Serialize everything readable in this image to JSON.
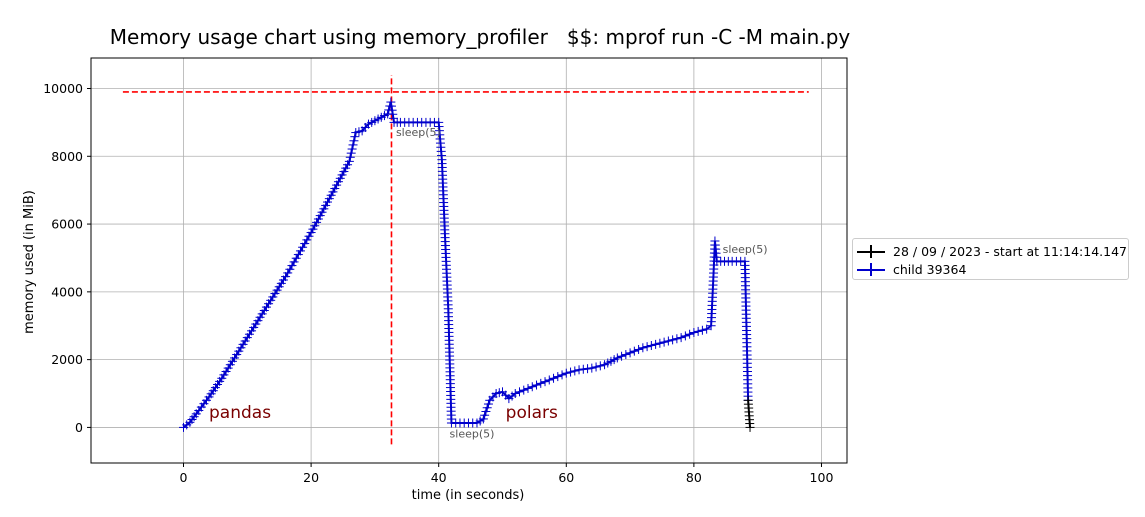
{
  "chart_data": {
    "type": "line",
    "title": "Memory usage chart using memory_profiler   $$: mprof run -C -M main.py",
    "xlabel": "time (in seconds)",
    "ylabel": "memory used (in MiB)",
    "xlim": [
      -14.5,
      104
    ],
    "ylim": [
      -1050,
      10900
    ],
    "x_ticks": [
      0,
      20,
      40,
      60,
      80,
      100
    ],
    "y_ticks": [
      0,
      2000,
      4000,
      6000,
      8000,
      10000
    ],
    "grid": true,
    "legend_position": "outside-right",
    "series": [
      {
        "name": "28 / 09 / 2023 - start at 11:14:14.147",
        "color": "#000000",
        "marker": "+",
        "points": [
          [
            88.5,
            800
          ],
          [
            88.8,
            0
          ]
        ]
      },
      {
        "name": "child 39364",
        "color": "#0000cc",
        "marker": "+",
        "points": [
          [
            0,
            0
          ],
          [
            1,
            150
          ],
          [
            2,
            400
          ],
          [
            4,
            900
          ],
          [
            6,
            1450
          ],
          [
            8,
            2050
          ],
          [
            10,
            2650
          ],
          [
            12,
            3250
          ],
          [
            14,
            3850
          ],
          [
            16,
            4450
          ],
          [
            18,
            5100
          ],
          [
            20,
            5750
          ],
          [
            22,
            6450
          ],
          [
            24,
            7150
          ],
          [
            26,
            7850
          ],
          [
            27,
            8700
          ],
          [
            28,
            8750
          ],
          [
            29,
            8950
          ],
          [
            30,
            9050
          ],
          [
            31,
            9150
          ],
          [
            32,
            9250
          ],
          [
            32.5,
            9600
          ],
          [
            33,
            9000
          ],
          [
            34,
            9000
          ],
          [
            36,
            9000
          ],
          [
            38,
            9000
          ],
          [
            40,
            9000
          ],
          [
            40.5,
            7900
          ],
          [
            41,
            5600
          ],
          [
            41.5,
            3500
          ],
          [
            42,
            130
          ],
          [
            44,
            130
          ],
          [
            46,
            130
          ],
          [
            47,
            250
          ],
          [
            48,
            800
          ],
          [
            49,
            1000
          ],
          [
            50,
            1050
          ],
          [
            51,
            850
          ],
          [
            52,
            1000
          ],
          [
            54,
            1150
          ],
          [
            56,
            1300
          ],
          [
            58,
            1450
          ],
          [
            60,
            1600
          ],
          [
            62,
            1700
          ],
          [
            64,
            1750
          ],
          [
            66,
            1850
          ],
          [
            68,
            2050
          ],
          [
            70,
            2200
          ],
          [
            72,
            2350
          ],
          [
            74,
            2450
          ],
          [
            76,
            2550
          ],
          [
            78,
            2650
          ],
          [
            80,
            2800
          ],
          [
            82,
            2900
          ],
          [
            82.7,
            3000
          ],
          [
            83,
            4200
          ],
          [
            83.3,
            5500
          ],
          [
            83.6,
            4900
          ],
          [
            86,
            4900
          ],
          [
            88,
            4900
          ],
          [
            88.3,
            2500
          ],
          [
            88.5,
            800
          ]
        ]
      }
    ],
    "annotations": [
      {
        "text": "pandas",
        "x": 4,
        "y": 280,
        "color": "#7a0000"
      },
      {
        "text": "polars",
        "x": 50.5,
        "y": 280,
        "color": "#7a0000"
      },
      {
        "text": "sleep(5)",
        "x": 33.3,
        "y": 8600,
        "color": "#555555"
      },
      {
        "text": "sleep(5)",
        "x": 41.7,
        "y": -300,
        "color": "#555555"
      },
      {
        "text": "sleep(5)",
        "x": 84.5,
        "y": 5150,
        "color": "#555555"
      }
    ],
    "reference_lines": [
      {
        "orientation": "horizontal",
        "y": 9900,
        "x_from": -9.5,
        "x_to": 98,
        "color": "#ff0000",
        "style": "dashed"
      },
      {
        "orientation": "vertical",
        "x": 32.6,
        "y_from": -500,
        "y_to": 10400,
        "color": "#ff0000",
        "style": "dashed"
      }
    ]
  }
}
